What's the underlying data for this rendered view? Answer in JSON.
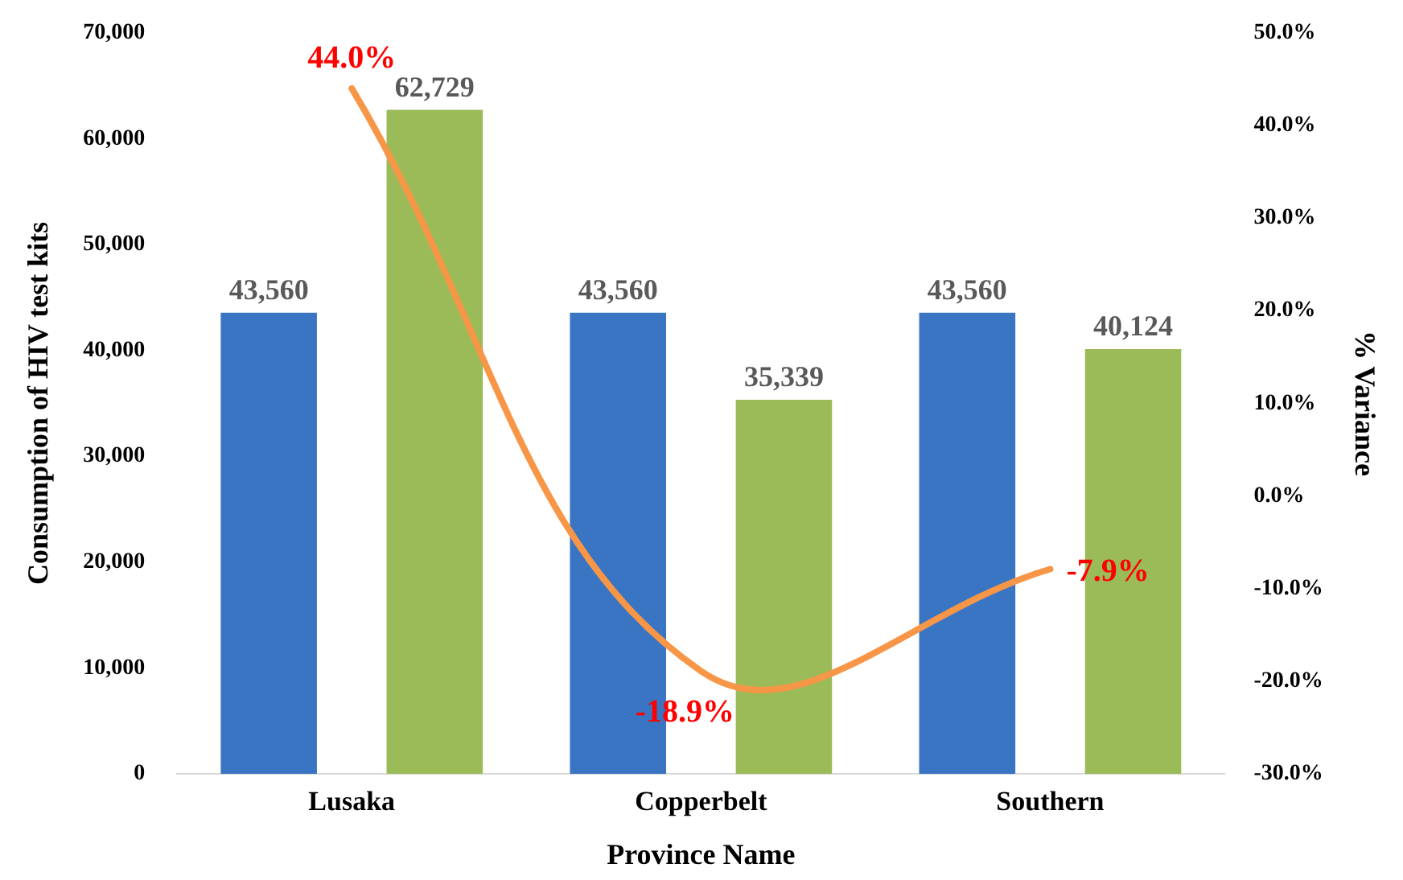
{
  "chart_data": {
    "type": "bar",
    "xlabel": "Province Name",
    "ylabel": "Consumption of HIV test kits",
    "y2label": "% Variance",
    "categories": [
      "Lusaka",
      "Copperbelt",
      "Southern"
    ],
    "series": [
      {
        "color": "#3a75c4",
        "values": [
          43560,
          43560,
          43560
        ],
        "value_labels": [
          "43,560",
          "43,560",
          "43,560"
        ]
      },
      {
        "color": "#9bbb59",
        "values": [
          62729,
          35339,
          40124
        ],
        "value_labels": [
          "62,729",
          "35,339",
          "40,124"
        ]
      },
      {
        "type": "line",
        "axis": "y2",
        "color": "#f79646",
        "values": [
          44.0,
          -18.9,
          -7.9
        ],
        "value_labels": [
          "44.0%",
          "-18.9%",
          "-7.9%"
        ]
      }
    ],
    "ylim": [
      0,
      70000
    ],
    "yticks": [
      {
        "value": 0,
        "label": "0"
      },
      {
        "value": 10000,
        "label": "10,000"
      },
      {
        "value": 20000,
        "label": "20,000"
      },
      {
        "value": 30000,
        "label": "30,000"
      },
      {
        "value": 40000,
        "label": "40,000"
      },
      {
        "value": 50000,
        "label": "50,000"
      },
      {
        "value": 60000,
        "label": "60,000"
      },
      {
        "value": 70000,
        "label": "70,000"
      }
    ],
    "y2lim": [
      -30,
      50
    ],
    "y2ticks": [
      {
        "value": -30,
        "label": "-30.0%"
      },
      {
        "value": -20,
        "label": "-20.0%"
      },
      {
        "value": -10,
        "label": "-10.0%"
      },
      {
        "value": 0,
        "label": "0.0%"
      },
      {
        "value": 10,
        "label": "10.0%"
      },
      {
        "value": 20,
        "label": "20.0%"
      },
      {
        "value": 30,
        "label": "30.0%"
      },
      {
        "value": 40,
        "label": "40.0%"
      },
      {
        "value": 50,
        "label": "50.0%"
      }
    ],
    "grid": false,
    "legend": false,
    "marker": "none",
    "line_style": "solid"
  }
}
